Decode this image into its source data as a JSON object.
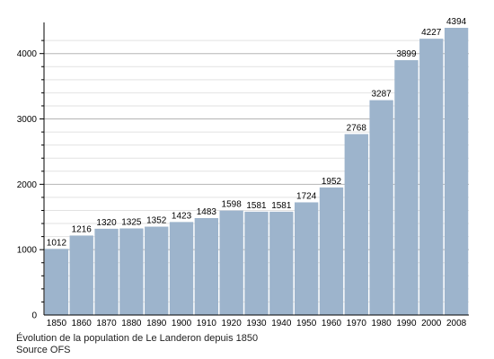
{
  "chart_data": {
    "type": "bar",
    "categories": [
      "1850",
      "1860",
      "1870",
      "1880",
      "1890",
      "1900",
      "1910",
      "1920",
      "1930",
      "1940",
      "1950",
      "1960",
      "1970",
      "1980",
      "1990",
      "2000",
      "2008"
    ],
    "values": [
      1012,
      1216,
      1320,
      1325,
      1352,
      1423,
      1483,
      1598,
      1581,
      1581,
      1724,
      1952,
      2768,
      3287,
      3899,
      4227,
      4394
    ],
    "yticks": [
      "0",
      "1000",
      "2000",
      "3000",
      "4000"
    ],
    "ylim": [
      0,
      4394
    ],
    "grid": true,
    "bar_color": "#9db4cc",
    "grid_color": "#b5b5b5",
    "title": "",
    "xlabel": "",
    "ylabel": ""
  },
  "caption": {
    "line1": "Évolution de la population de Le Landeron depuis 1850",
    "line2": "Source OFS"
  }
}
